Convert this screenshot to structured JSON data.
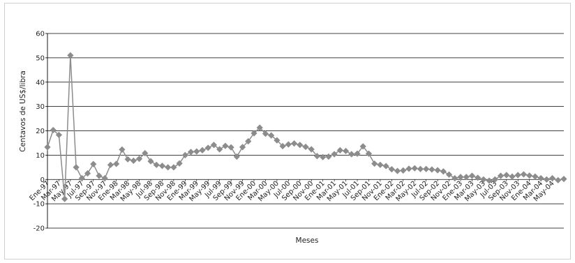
{
  "chart_data": {
    "type": "line",
    "xlabel": "Meses",
    "ylabel": "Centavos de US$/libra",
    "ylim": [
      -20,
      60
    ],
    "yticks": [
      -20,
      -10,
      0,
      10,
      20,
      30,
      40,
      50,
      60
    ],
    "grid": true,
    "legend": "none",
    "marker": "diamond",
    "colors": {
      "series": "#8c8c8c",
      "axis": "#000000",
      "grid": "#000000"
    },
    "x_tick_labels": [
      "Ene-97",
      "Mar-97",
      "May-97",
      "Jul-97",
      "Sep-97",
      "Nov-97",
      "Ene-98",
      "Mar-98",
      "May-98",
      "Jul-98",
      "Sep-98",
      "Nov-98",
      "Ene-99",
      "Mar-99",
      "May-99",
      "Jul-99",
      "Sep-99",
      "Nov-99",
      "Ene-00",
      "Mar-00",
      "May-00",
      "Jul-00",
      "Sep-00",
      "Nov-00",
      "Ene-01",
      "Mar-01",
      "May-01",
      "Jul-01",
      "Sep-01",
      "Nov-01",
      "Ene-02",
      "Mar-02",
      "May-02",
      "Jul-02",
      "Sep-02",
      "Nov-02",
      "Ene-03",
      "Mar-03",
      "May-03",
      "Jul-03",
      "Sep-03",
      "Nov-03",
      "Ene-04",
      "Mar-04",
      "May-04"
    ],
    "series": [
      {
        "values": [
          13.3,
          20.3,
          18.3,
          -8,
          51,
          5,
          0.5,
          2.5,
          6.3,
          1.5,
          0.5,
          6,
          6.4,
          12.3,
          8.3,
          7.7,
          8.5,
          10.8,
          7.5,
          6,
          5.6,
          5,
          5,
          6.6,
          10,
          11.3,
          11.5,
          12,
          13,
          14.2,
          12.4,
          13.8,
          13.2,
          9.4,
          13.3,
          15.7,
          19,
          21.3,
          18.8,
          18.1,
          16.1,
          13.7,
          14.4,
          14.8,
          14.2,
          13.4,
          12.4,
          9.6,
          9.2,
          9.4,
          10.4,
          12,
          11.7,
          10.4,
          10.6,
          13.6,
          10.6,
          6.5,
          6,
          5.5,
          4.2,
          3.5,
          3.7,
          4.4,
          4.6,
          4.3,
          4.3,
          4.1,
          3.8,
          3.3,
          2,
          0.5,
          1,
          1,
          1.5,
          0.7,
          0,
          -0.5,
          0,
          1.5,
          1.8,
          1.2,
          1.8,
          2.1,
          1.6,
          1.2,
          0.5,
          0,
          0.5,
          -0.3,
          0.2
        ]
      }
    ]
  }
}
